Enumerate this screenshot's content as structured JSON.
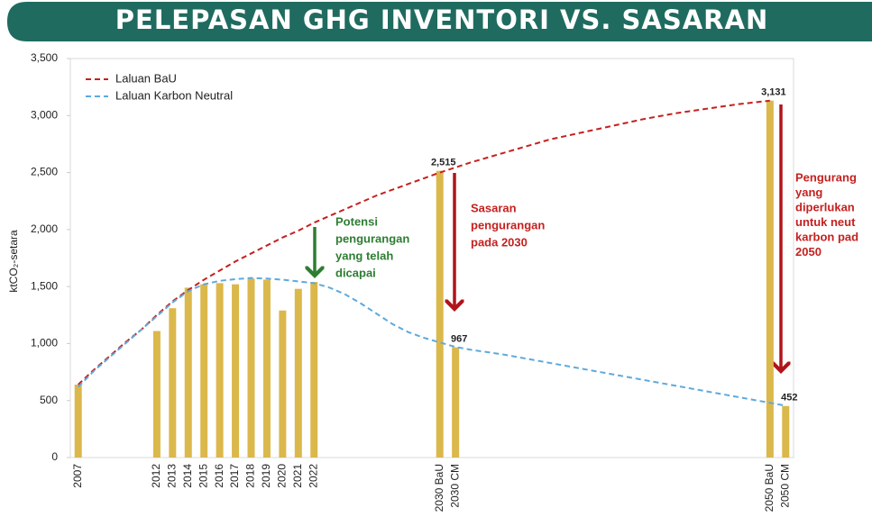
{
  "chart_data": {
    "type": "bar",
    "title": "PELEPASAN GHG INVENTORI VS. SASARAN",
    "y_label": "ktCO₂-setara",
    "categories": [
      "2007",
      null,
      null,
      null,
      null,
      "2012",
      "2013",
      "2014",
      "2015",
      "2016",
      "2017",
      "2018",
      "2019",
      "2020",
      "2021",
      "2022",
      null,
      null,
      null,
      null,
      null,
      null,
      null,
      "2030 BaU",
      "2030 CM",
      null,
      null,
      null,
      null,
      null,
      null,
      null,
      null,
      null,
      null,
      null,
      null,
      null,
      null,
      null,
      null,
      null,
      null,
      null,
      "2050 BaU",
      "2050 CM"
    ],
    "values": [
      640,
      null,
      null,
      null,
      null,
      1110,
      1310,
      1490,
      1520,
      1530,
      1520,
      1570,
      1560,
      1290,
      1480,
      1540,
      null,
      null,
      null,
      null,
      null,
      null,
      null,
      2515,
      967,
      null,
      null,
      null,
      null,
      null,
      null,
      null,
      null,
      null,
      null,
      null,
      null,
      null,
      null,
      null,
      null,
      null,
      null,
      null,
      3131,
      452
    ],
    "value_labels": [
      null,
      null,
      null,
      null,
      null,
      null,
      null,
      null,
      null,
      null,
      null,
      null,
      null,
      null,
      null,
      null,
      null,
      null,
      null,
      null,
      null,
      null,
      null,
      "2,515",
      "967",
      null,
      null,
      null,
      null,
      null,
      null,
      null,
      null,
      null,
      null,
      null,
      null,
      null,
      null,
      null,
      null,
      null,
      null,
      null,
      "3,131",
      "452"
    ],
    "color": "#dbb84c",
    "lines": [
      {
        "name": "Laluan BaU",
        "color": "#c4211f",
        "values": [
          640,
          770,
          890,
          1010,
          1120,
          1250,
          1370,
          1470,
          1560,
          1640,
          1720,
          1790,
          1860,
          1930,
          1990,
          2060,
          2120,
          2180,
          2240,
          2300,
          2350,
          2400,
          2450,
          2500,
          2545,
          2590,
          2630,
          2670,
          2710,
          2750,
          2790,
          2820,
          2850,
          2880,
          2910,
          2940,
          2970,
          2995,
          3020,
          3040,
          3060,
          3080,
          3100,
          3115,
          3131,
          null
        ]
      },
      {
        "name": "Laluan Karbon Neutral",
        "color": "#5ea9dd",
        "values": [
          620,
          760,
          880,
          1000,
          1120,
          1240,
          1360,
          1460,
          1520,
          1550,
          1565,
          1575,
          1570,
          1560,
          1545,
          1530,
          1490,
          1430,
          1350,
          1260,
          1170,
          1100,
          1050,
          1010,
          970,
          945,
          925,
          905,
          880,
          855,
          830,
          805,
          780,
          755,
          730,
          705,
          680,
          655,
          630,
          605,
          580,
          555,
          530,
          505,
          480,
          455
        ]
      }
    ],
    "ylim": [
      0,
      3500
    ],
    "yticks": [
      0,
      500,
      {
        "value": 1000,
        "label": "1,000"
      },
      {
        "value": 1500,
        "label": "1,500"
      },
      {
        "value": 2000,
        "label": "2,000"
      },
      {
        "value": 2500,
        "label": "2,500"
      },
      {
        "value": 3000,
        "label": "3,000"
      },
      {
        "value": 3500,
        "label": "3,500"
      }
    ],
    "legend": "upper left",
    "annotations": [
      {
        "lines": [
          "Potensi",
          "pengurangan",
          "yang telah",
          "dicapai"
        ],
        "color": "#2e7d32"
      },
      {
        "lines": [
          "Sasaran",
          "pengurangan",
          "pada 2030"
        ],
        "color": "#c4211f"
      },
      {
        "lines": [
          "Pengurang",
          "yang",
          "diperlukan",
          "untuk neut",
          "karbon pad",
          "2050"
        ],
        "color": "#c4211f"
      }
    ]
  }
}
